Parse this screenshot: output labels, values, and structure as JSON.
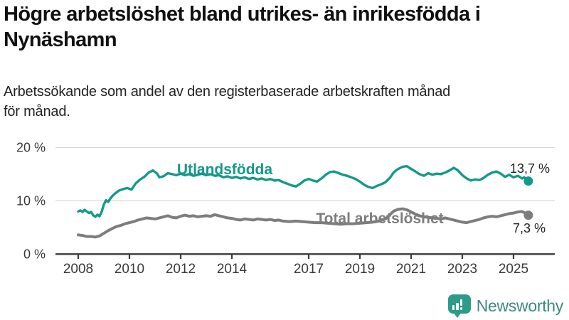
{
  "header": {
    "title_line1": "Högre arbetslöshet bland utrikes- än inrikesfödda i",
    "title_line2": "Nynäshamn",
    "subtitle_line1": "Arbetssökande som andel av den registerbaserade arbetskraften månad",
    "subtitle_line2": "för månad."
  },
  "colors": {
    "foreign_born_line": "#14998a",
    "total_line": "#7d7d7d",
    "gridline": "#d9d9d9",
    "axis": "#3a3a3a",
    "tick_text": "#3a3a3a",
    "value_label_text": "#222222",
    "logo_teal": "#2e9b89",
    "logo_text": "#3c8a7e"
  },
  "chart_data": {
    "type": "line",
    "title": "Högre arbetslöshet bland utrikes- än inrikesfödda i Nynäshamn",
    "subtitle": "Arbetssökande som andel av den registerbaserade arbetskraften månad för månad.",
    "xlabel": "",
    "ylabel": "",
    "x_range": [
      2007.6,
      2026.3
    ],
    "ylim": [
      0,
      20
    ],
    "grid": "horizontal",
    "legend_position": "inline-labels",
    "x_ticks": [
      "2008",
      "2010",
      "2012",
      "2014",
      "2017",
      "2019",
      "2021",
      "2023",
      "2025"
    ],
    "x_tick_years": [
      2008,
      2010,
      2012,
      2014,
      2017,
      2019,
      2021,
      2023,
      2025
    ],
    "y_ticks": [
      {
        "value": 0,
        "label": "0 %"
      },
      {
        "value": 10,
        "label": "10 %"
      },
      {
        "value": 20,
        "label": "20 %"
      }
    ],
    "series": [
      {
        "name": "Utlandsfödda",
        "end_label": "13,7 %",
        "end_value": 13.7,
        "points": [
          [
            2008.0,
            8.0
          ],
          [
            2008.08,
            8.2
          ],
          [
            2008.17,
            7.9
          ],
          [
            2008.25,
            8.3
          ],
          [
            2008.33,
            8.0
          ],
          [
            2008.42,
            7.7
          ],
          [
            2008.5,
            7.9
          ],
          [
            2008.58,
            7.3
          ],
          [
            2008.67,
            7.0
          ],
          [
            2008.75,
            7.4
          ],
          [
            2008.83,
            7.1
          ],
          [
            2008.92,
            8.0
          ],
          [
            2009.0,
            9.3
          ],
          [
            2009.08,
            10.1
          ],
          [
            2009.17,
            9.8
          ],
          [
            2009.25,
            10.4
          ],
          [
            2009.33,
            10.9
          ],
          [
            2009.42,
            11.3
          ],
          [
            2009.58,
            11.9
          ],
          [
            2009.75,
            12.2
          ],
          [
            2009.92,
            12.4
          ],
          [
            2010.08,
            12.1
          ],
          [
            2010.25,
            13.3
          ],
          [
            2010.42,
            14.0
          ],
          [
            2010.58,
            14.5
          ],
          [
            2010.75,
            15.3
          ],
          [
            2010.92,
            15.7
          ],
          [
            2011.08,
            15.1
          ],
          [
            2011.17,
            14.4
          ],
          [
            2011.33,
            14.6
          ],
          [
            2011.5,
            15.2
          ],
          [
            2011.67,
            15.0
          ],
          [
            2011.83,
            14.8
          ],
          [
            2012.0,
            15.1
          ],
          [
            2012.17,
            14.8
          ],
          [
            2012.33,
            15.0
          ],
          [
            2012.5,
            14.7
          ],
          [
            2012.67,
            14.9
          ],
          [
            2012.83,
            15.1
          ],
          [
            2013.0,
            14.8
          ],
          [
            2013.17,
            15.0
          ],
          [
            2013.33,
            14.7
          ],
          [
            2013.5,
            14.8
          ],
          [
            2013.67,
            14.4
          ],
          [
            2013.83,
            14.6
          ],
          [
            2014.0,
            14.3
          ],
          [
            2014.17,
            14.5
          ],
          [
            2014.33,
            14.2
          ],
          [
            2014.5,
            14.4
          ],
          [
            2014.67,
            14.1
          ],
          [
            2014.83,
            14.3
          ],
          [
            2015.0,
            14.0
          ],
          [
            2015.17,
            14.2
          ],
          [
            2015.33,
            13.9
          ],
          [
            2015.5,
            14.1
          ],
          [
            2015.67,
            13.8
          ],
          [
            2015.83,
            13.9
          ],
          [
            2016.0,
            13.5
          ],
          [
            2016.17,
            13.2
          ],
          [
            2016.33,
            12.9
          ],
          [
            2016.5,
            12.7
          ],
          [
            2016.67,
            13.2
          ],
          [
            2016.83,
            13.8
          ],
          [
            2017.0,
            14.1
          ],
          [
            2017.17,
            13.8
          ],
          [
            2017.33,
            13.6
          ],
          [
            2017.5,
            14.2
          ],
          [
            2017.67,
            14.9
          ],
          [
            2017.83,
            15.4
          ],
          [
            2018.0,
            15.5
          ],
          [
            2018.17,
            15.2
          ],
          [
            2018.33,
            14.9
          ],
          [
            2018.5,
            14.7
          ],
          [
            2018.67,
            14.4
          ],
          [
            2018.83,
            14.1
          ],
          [
            2019.0,
            13.6
          ],
          [
            2019.17,
            13.0
          ],
          [
            2019.33,
            12.6
          ],
          [
            2019.5,
            12.4
          ],
          [
            2019.67,
            12.8
          ],
          [
            2019.83,
            13.1
          ],
          [
            2020.0,
            13.5
          ],
          [
            2020.17,
            14.3
          ],
          [
            2020.33,
            15.4
          ],
          [
            2020.5,
            16.0
          ],
          [
            2020.67,
            16.4
          ],
          [
            2020.83,
            16.5
          ],
          [
            2021.0,
            16.0
          ],
          [
            2021.17,
            15.5
          ],
          [
            2021.33,
            15.0
          ],
          [
            2021.5,
            14.7
          ],
          [
            2021.67,
            15.2
          ],
          [
            2021.83,
            14.9
          ],
          [
            2022.0,
            15.1
          ],
          [
            2022.17,
            15.0
          ],
          [
            2022.33,
            15.3
          ],
          [
            2022.5,
            15.7
          ],
          [
            2022.67,
            16.2
          ],
          [
            2022.83,
            15.7
          ],
          [
            2023.0,
            14.8
          ],
          [
            2023.17,
            14.2
          ],
          [
            2023.33,
            13.8
          ],
          [
            2023.5,
            14.0
          ],
          [
            2023.67,
            13.9
          ],
          [
            2023.83,
            14.3
          ],
          [
            2024.0,
            14.9
          ],
          [
            2024.17,
            15.3
          ],
          [
            2024.33,
            15.5
          ],
          [
            2024.5,
            15.1
          ],
          [
            2024.67,
            14.5
          ],
          [
            2024.83,
            14.9
          ],
          [
            2025.0,
            14.4
          ],
          [
            2025.17,
            14.7
          ],
          [
            2025.33,
            14.2
          ],
          [
            2025.42,
            14.4
          ],
          [
            2025.58,
            13.7
          ]
        ]
      },
      {
        "name": "Total arbetslöshet",
        "end_label": "7,3 %",
        "end_value": 7.3,
        "points": [
          [
            2008.0,
            3.6
          ],
          [
            2008.17,
            3.5
          ],
          [
            2008.33,
            3.3
          ],
          [
            2008.5,
            3.3
          ],
          [
            2008.67,
            3.2
          ],
          [
            2008.83,
            3.4
          ],
          [
            2009.0,
            3.9
          ],
          [
            2009.17,
            4.4
          ],
          [
            2009.33,
            4.8
          ],
          [
            2009.5,
            5.2
          ],
          [
            2009.67,
            5.4
          ],
          [
            2009.83,
            5.7
          ],
          [
            2010.0,
            5.9
          ],
          [
            2010.17,
            6.1
          ],
          [
            2010.33,
            6.4
          ],
          [
            2010.5,
            6.6
          ],
          [
            2010.67,
            6.8
          ],
          [
            2010.83,
            6.7
          ],
          [
            2011.0,
            6.6
          ],
          [
            2011.17,
            6.8
          ],
          [
            2011.33,
            7.0
          ],
          [
            2011.5,
            7.2
          ],
          [
            2011.67,
            6.9
          ],
          [
            2011.83,
            6.8
          ],
          [
            2012.0,
            7.1
          ],
          [
            2012.17,
            7.3
          ],
          [
            2012.33,
            7.1
          ],
          [
            2012.5,
            7.2
          ],
          [
            2012.67,
            7.0
          ],
          [
            2012.83,
            7.1
          ],
          [
            2013.0,
            7.2
          ],
          [
            2013.17,
            7.1
          ],
          [
            2013.33,
            7.4
          ],
          [
            2013.5,
            7.2
          ],
          [
            2013.67,
            7.0
          ],
          [
            2013.83,
            6.8
          ],
          [
            2014.0,
            6.7
          ],
          [
            2014.17,
            6.5
          ],
          [
            2014.33,
            6.4
          ],
          [
            2014.5,
            6.6
          ],
          [
            2014.67,
            6.5
          ],
          [
            2014.83,
            6.4
          ],
          [
            2015.0,
            6.6
          ],
          [
            2015.17,
            6.5
          ],
          [
            2015.33,
            6.4
          ],
          [
            2015.5,
            6.5
          ],
          [
            2015.67,
            6.3
          ],
          [
            2015.83,
            6.4
          ],
          [
            2016.0,
            6.2
          ],
          [
            2016.25,
            6.1
          ],
          [
            2016.5,
            6.2
          ],
          [
            2016.75,
            6.1
          ],
          [
            2017.0,
            6.0
          ],
          [
            2017.25,
            5.9
          ],
          [
            2017.5,
            5.9
          ],
          [
            2017.75,
            5.8
          ],
          [
            2018.0,
            5.7
          ],
          [
            2018.25,
            5.6
          ],
          [
            2018.5,
            5.7
          ],
          [
            2018.75,
            5.7
          ],
          [
            2019.0,
            5.8
          ],
          [
            2019.25,
            5.9
          ],
          [
            2019.5,
            6.0
          ],
          [
            2019.75,
            6.2
          ],
          [
            2020.0,
            6.6
          ],
          [
            2020.17,
            7.4
          ],
          [
            2020.33,
            8.1
          ],
          [
            2020.5,
            8.4
          ],
          [
            2020.67,
            8.5
          ],
          [
            2020.83,
            8.3
          ],
          [
            2021.0,
            7.9
          ],
          [
            2021.17,
            7.5
          ],
          [
            2021.33,
            7.2
          ],
          [
            2021.5,
            7.0
          ],
          [
            2021.67,
            6.9
          ],
          [
            2021.83,
            6.8
          ],
          [
            2022.0,
            6.7
          ],
          [
            2022.17,
            6.6
          ],
          [
            2022.33,
            6.8
          ],
          [
            2022.5,
            6.6
          ],
          [
            2022.67,
            6.4
          ],
          [
            2022.83,
            6.2
          ],
          [
            2023.0,
            6.0
          ],
          [
            2023.17,
            5.9
          ],
          [
            2023.33,
            6.1
          ],
          [
            2023.5,
            6.3
          ],
          [
            2023.67,
            6.5
          ],
          [
            2023.83,
            6.8
          ],
          [
            2024.0,
            7.0
          ],
          [
            2024.17,
            7.1
          ],
          [
            2024.33,
            7.0
          ],
          [
            2024.5,
            7.2
          ],
          [
            2024.67,
            7.4
          ],
          [
            2024.83,
            7.6
          ],
          [
            2025.0,
            7.7
          ],
          [
            2025.17,
            7.9
          ],
          [
            2025.33,
            8.0
          ],
          [
            2025.42,
            7.8
          ],
          [
            2025.58,
            7.3
          ]
        ]
      }
    ]
  },
  "footer": {
    "brand": "Newsworthy",
    "logo_icon": "bar-chart-speech-bubble-icon"
  }
}
